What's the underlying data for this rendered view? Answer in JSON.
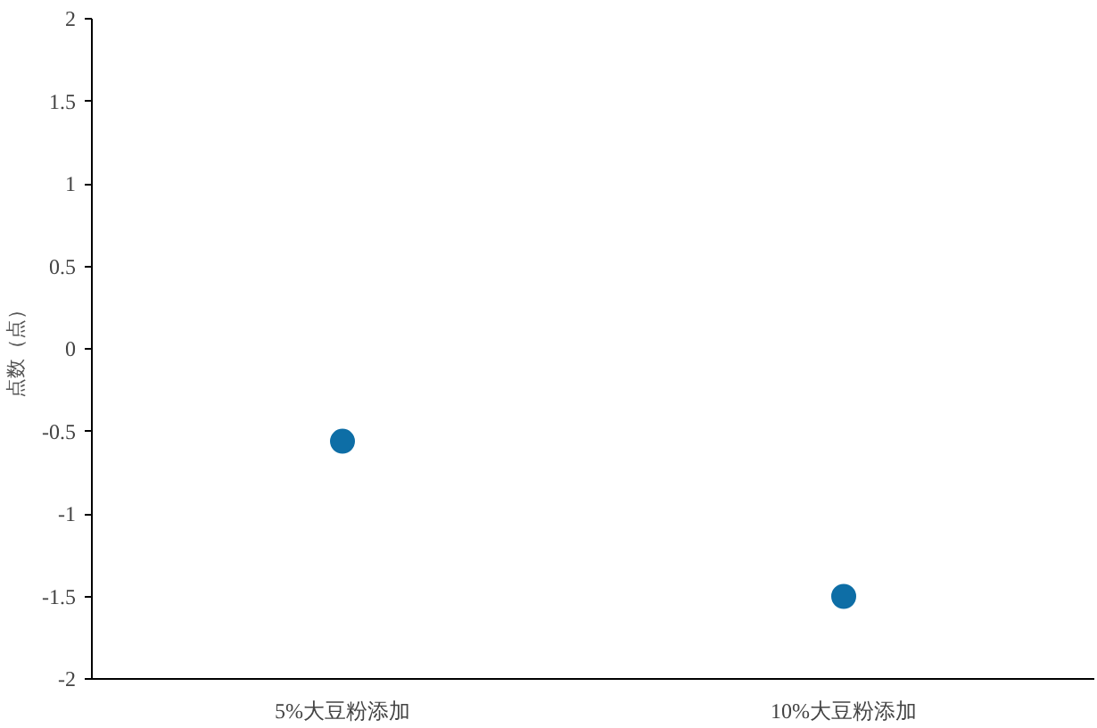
{
  "chart_data": {
    "type": "scatter",
    "ylabel": "点数（点）",
    "categories": [
      "5%大豆粉添加",
      "10%大豆粉添加"
    ],
    "values": [
      -0.56,
      -1.5
    ],
    "color": "#0e6ea6",
    "marker": "circle",
    "ylim": [
      -2,
      2
    ],
    "yticks": [
      -2,
      -1.5,
      -1,
      -0.5,
      0,
      0.5,
      1,
      1.5,
      2
    ],
    "grid": false
  }
}
